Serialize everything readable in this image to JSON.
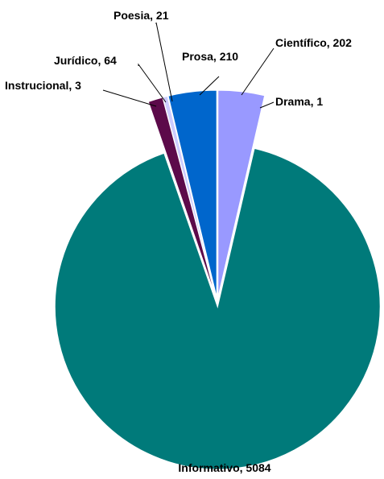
{
  "chart_data": {
    "type": "pie",
    "title": "",
    "series": [
      {
        "values": [
          {
            "label": "Científico",
            "value": 202,
            "color": "#9999ff"
          },
          {
            "label": "Drama",
            "value": 1,
            "color": "#cc0000"
          },
          {
            "label": "Informativo",
            "value": 5084,
            "color": "#007a7a"
          },
          {
            "label": "Instrucional",
            "value": 3,
            "color": "#ff9999"
          },
          {
            "label": "Jurídico",
            "value": 64,
            "color": "#5c0a4a"
          },
          {
            "label": "Poesia",
            "value": 21,
            "color": "#ccccff"
          },
          {
            "label": "Prosa",
            "value": 210,
            "color": "#0066cc"
          }
        ]
      }
    ],
    "label_format": "{label}, {value}",
    "exploded": true,
    "legend": "none",
    "start": "top",
    "direction": "clockwise"
  }
}
